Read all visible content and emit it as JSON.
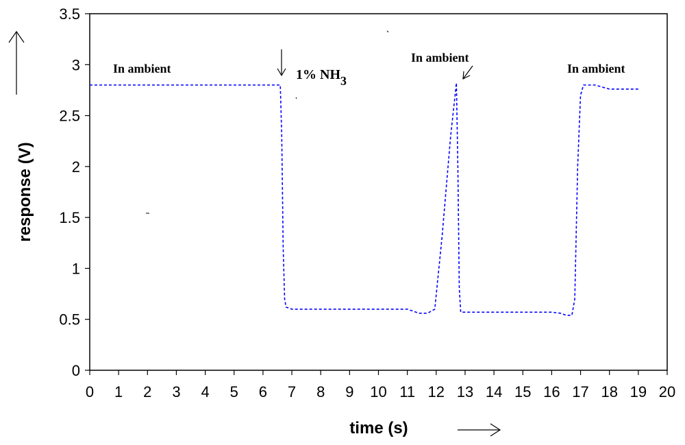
{
  "chart_data": {
    "type": "line",
    "title": "",
    "xlabel": "time (s)",
    "ylabel": "response (V)",
    "xlim": [
      0,
      20
    ],
    "ylim": [
      0,
      3.5
    ],
    "x_ticks": [
      0,
      1,
      2,
      3,
      4,
      5,
      6,
      7,
      8,
      9,
      10,
      11,
      12,
      13,
      14,
      15,
      16,
      17,
      18,
      19,
      20
    ],
    "y_ticks": [
      "0",
      "0.5",
      "1",
      "1.5",
      "2",
      "2.5",
      "3",
      "3.5"
    ],
    "grid": false,
    "series": [
      {
        "color": "#0000ff",
        "style": "dashed",
        "x": [
          0,
          6.6,
          6.65,
          6.7,
          6.75,
          6.8,
          7.0,
          8,
          9,
          10,
          11,
          11.2,
          11.4,
          11.7,
          11.95,
          12.2,
          12.5,
          12.7,
          12.75,
          12.8,
          12.85,
          13,
          14,
          15,
          16,
          16.3,
          16.5,
          16.7,
          16.8,
          16.9,
          17.0,
          17.1,
          17.5,
          18,
          19
        ],
        "values": [
          2.8,
          2.8,
          2.3,
          1.2,
          0.7,
          0.62,
          0.6,
          0.6,
          0.6,
          0.6,
          0.6,
          0.58,
          0.56,
          0.56,
          0.6,
          1.3,
          2.3,
          2.82,
          2.0,
          0.8,
          0.57,
          0.57,
          0.57,
          0.57,
          0.57,
          0.56,
          0.54,
          0.54,
          0.7,
          2.0,
          2.7,
          2.8,
          2.8,
          2.76,
          2.76
        ]
      }
    ],
    "annotations": {
      "ambient_left": "In ambient",
      "nh3_prefix": "1% NH",
      "nh3_subscript": "3",
      "ambient_mid": "In ambient",
      "ambient_right": "In ambient"
    }
  }
}
